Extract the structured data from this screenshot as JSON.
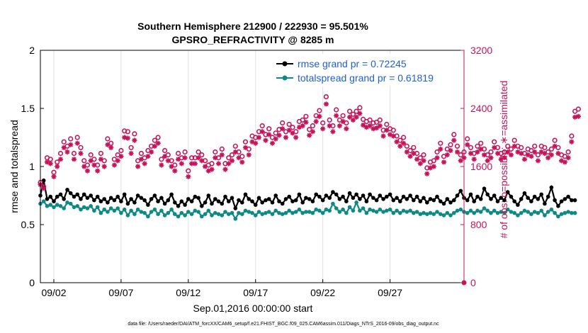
{
  "chart_data": {
    "type": "line",
    "title_line1": "Southern Hemisphere 212900 / 222930 = 95.501%",
    "title_line2": "GPSRO_REFRACTIVITY @ 8285 m",
    "xlabel": "Sep.01,2016 00:00:00 start",
    "ylabel": "rmse and totalspread",
    "ylabel_right": "# of obs: o=possible; ∗=assimilated",
    "xlim": [
      1,
      32.5
    ],
    "ylim": [
      0,
      2
    ],
    "ylim_right": [
      0,
      3200
    ],
    "x_ticks": [
      {
        "x": 2,
        "label": "09/02"
      },
      {
        "x": 7,
        "label": "09/07"
      },
      {
        "x": 12,
        "label": "09/12"
      },
      {
        "x": 17,
        "label": "09/17"
      },
      {
        "x": 22,
        "label": "09/22"
      },
      {
        "x": 27,
        "label": "09/27"
      }
    ],
    "y_ticks": [
      {
        "v": 0,
        "label": "0"
      },
      {
        "v": 0.5,
        "label": "0.5"
      },
      {
        "v": 1,
        "label": "1"
      },
      {
        "v": 1.5,
        "label": "1.5"
      },
      {
        "v": 2,
        "label": "2"
      }
    ],
    "y_ticks_right": [
      {
        "v": 0,
        "label": "0"
      },
      {
        "v": 800,
        "label": "800"
      },
      {
        "v": 1600,
        "label": "1600"
      },
      {
        "v": 2400,
        "label": "2400"
      },
      {
        "v": 3200,
        "label": "3200"
      }
    ],
    "grid": "vertical",
    "legend_position": "top-right",
    "series": [
      {
        "name": "rmse grand pr = 0.72245",
        "axis": "left",
        "color": "#000000",
        "marker": "dot",
        "start": 1,
        "step": 0.25,
        "values": [
          0.75,
          0.88,
          0.72,
          0.74,
          0.7,
          0.74,
          0.76,
          0.72,
          0.8,
          0.77,
          0.74,
          0.76,
          0.72,
          0.76,
          0.73,
          0.75,
          0.71,
          0.74,
          0.7,
          0.72,
          0.69,
          0.73,
          0.71,
          0.74,
          0.7,
          0.76,
          0.68,
          0.72,
          0.69,
          0.75,
          0.73,
          0.71,
          0.67,
          0.72,
          0.75,
          0.7,
          0.73,
          0.68,
          0.71,
          0.76,
          0.69,
          0.66,
          0.7,
          0.67,
          0.72,
          0.7,
          0.74,
          0.73,
          0.66,
          0.69,
          0.75,
          0.68,
          0.72,
          0.7,
          0.68,
          0.74,
          0.7,
          0.73,
          0.64,
          0.71,
          0.69,
          0.76,
          0.72,
          0.7,
          0.67,
          0.73,
          0.69,
          0.71,
          0.72,
          0.69,
          0.75,
          0.7,
          0.68,
          0.72,
          0.74,
          0.7,
          0.71,
          0.76,
          0.69,
          0.73,
          0.72,
          0.7,
          0.76,
          0.74,
          0.71,
          0.75,
          0.73,
          0.78,
          0.76,
          0.72,
          0.74,
          0.7,
          0.77,
          0.73,
          0.76,
          0.72,
          0.75,
          0.7,
          0.76,
          0.73,
          0.71,
          0.75,
          0.72,
          0.74,
          0.76,
          0.71,
          0.73,
          0.7,
          0.74,
          0.72,
          0.75,
          0.71,
          0.74,
          0.7,
          0.73,
          0.69,
          0.72,
          0.71,
          0.74,
          0.7,
          0.68,
          0.72,
          0.69,
          0.71,
          0.75,
          0.79,
          0.73,
          0.71,
          0.76,
          0.7,
          0.74,
          0.72,
          0.81,
          0.76,
          0.72,
          0.75,
          0.7,
          0.73,
          0.71,
          0.78,
          0.74,
          0.7,
          0.67,
          0.72,
          0.77,
          0.73,
          0.7,
          0.74,
          0.72,
          0.76,
          0.68,
          0.74,
          0.82,
          0.71,
          0.66,
          0.7,
          0.72,
          0.74,
          0.71,
          0.71
        ]
      },
      {
        "name": "totalspread grand pr = 0.61819",
        "axis": "left",
        "color": "#0e8a84",
        "marker": "dot",
        "start": 1,
        "step": 0.25,
        "values": [
          0.68,
          0.7,
          0.66,
          0.67,
          0.65,
          0.67,
          0.66,
          0.64,
          0.69,
          0.68,
          0.65,
          0.66,
          0.63,
          0.65,
          0.64,
          0.66,
          0.62,
          0.65,
          0.6,
          0.63,
          0.61,
          0.64,
          0.62,
          0.64,
          0.6,
          0.63,
          0.58,
          0.62,
          0.59,
          0.63,
          0.61,
          0.6,
          0.57,
          0.61,
          0.63,
          0.59,
          0.62,
          0.58,
          0.6,
          0.63,
          0.59,
          0.57,
          0.6,
          0.58,
          0.61,
          0.59,
          0.62,
          0.61,
          0.57,
          0.59,
          0.62,
          0.58,
          0.6,
          0.59,
          0.58,
          0.61,
          0.59,
          0.6,
          0.55,
          0.6,
          0.59,
          0.62,
          0.61,
          0.6,
          0.58,
          0.61,
          0.59,
          0.6,
          0.61,
          0.59,
          0.62,
          0.6,
          0.59,
          0.6,
          0.62,
          0.6,
          0.61,
          0.63,
          0.6,
          0.61,
          0.61,
          0.6,
          0.63,
          0.62,
          0.6,
          0.63,
          0.62,
          0.68,
          0.64,
          0.61,
          0.63,
          0.6,
          0.65,
          0.62,
          0.69,
          0.62,
          0.64,
          0.6,
          0.63,
          0.62,
          0.61,
          0.63,
          0.61,
          0.62,
          0.63,
          0.6,
          0.62,
          0.6,
          0.62,
          0.61,
          0.62,
          0.6,
          0.61,
          0.59,
          0.6,
          0.59,
          0.6,
          0.59,
          0.61,
          0.59,
          0.58,
          0.6,
          0.58,
          0.6,
          0.62,
          0.63,
          0.61,
          0.6,
          0.62,
          0.6,
          0.62,
          0.61,
          0.64,
          0.62,
          0.6,
          0.62,
          0.6,
          0.61,
          0.6,
          0.63,
          0.61,
          0.6,
          0.58,
          0.6,
          0.62,
          0.61,
          0.59,
          0.61,
          0.6,
          0.62,
          0.58,
          0.61,
          0.63,
          0.6,
          0.57,
          0.59,
          0.6,
          0.61,
          0.6,
          0.6
        ]
      },
      {
        "name": "possible",
        "axis": "right",
        "color": "#c4145a",
        "marker": "circle",
        "start": 1,
        "step": 0.25,
        "values": [
          1380,
          1320,
          1720,
          1700,
          1520,
          1660,
          1780,
          1940,
          1880,
          1980,
          1780,
          2000,
          1860,
          1680,
          1620,
          1760,
          1700,
          1620,
          1780,
          1680,
          1980,
          1920,
          1700,
          1760,
          1820,
          2090,
          2080,
          1860,
          2050,
          1680,
          1780,
          1720,
          1820,
          1880,
          1960,
          2000,
          1700,
          1820,
          1760,
          1680,
          1620,
          1780,
          1720,
          1800,
          1540,
          1720,
          1720,
          1800,
          1760,
          1680,
          1620,
          1640,
          1800,
          1720,
          1840,
          1640,
          1720,
          1760,
          1880,
          1800,
          1740,
          1940,
          1840,
          2020,
          2000,
          2080,
          2160,
          2040,
          2120,
          2000,
          2060,
          2110,
          2200,
          2080,
          2180,
          2140,
          2080,
          2220,
          2240,
          2290,
          2110,
          2160,
          2300,
          2370,
          2200,
          2560,
          2240,
          2160,
          2380,
          2240,
          2300,
          2200,
          2360,
          2320,
          2360,
          2410,
          2250,
          2220,
          2240,
          2200,
          2210,
          2240,
          2100,
          2180,
          2120,
          2100,
          2020,
          1960,
          2000,
          1880,
          1820,
          1860,
          1780,
          1720,
          1760,
          1580,
          1660,
          1680,
          1800,
          1920,
          1740,
          1840,
          1900,
          2040,
          1880,
          1760,
          1800,
          1980,
          1860,
          1780,
          1880,
          1920,
          1840,
          1760,
          1800,
          1940,
          1860,
          1780,
          1800,
          1880,
          1840,
          1960,
          1880,
          1860,
          1780,
          1840,
          1820,
          1880,
          1760,
          1880,
          1860,
          1800,
          1840,
          1960,
          1860,
          1760,
          1740,
          1800,
          2020,
          2360,
          2390
        ]
      },
      {
        "name": "assimilated",
        "axis": "right",
        "color": "#c4145a",
        "marker": "asterisk",
        "start": 1,
        "step": 0.25,
        "values": [
          1350,
          1300,
          1660,
          1640,
          1460,
          1600,
          1700,
          1860,
          1800,
          1900,
          1700,
          1920,
          1780,
          1600,
          1540,
          1680,
          1620,
          1540,
          1700,
          1600,
          1900,
          1860,
          1620,
          1680,
          1740,
          2000,
          1990,
          1780,
          1960,
          1600,
          1700,
          1640,
          1740,
          1800,
          1880,
          1920,
          1620,
          1740,
          1680,
          1600,
          1540,
          1700,
          1640,
          1720,
          1460,
          1640,
          1640,
          1720,
          1680,
          1600,
          1540,
          1560,
          1720,
          1640,
          1760,
          1560,
          1640,
          1680,
          1800,
          1720,
          1660,
          1860,
          1760,
          1940,
          1920,
          2000,
          2080,
          1960,
          2040,
          1920,
          1980,
          2030,
          2120,
          2000,
          2100,
          2060,
          2000,
          2140,
          2160,
          2210,
          2030,
          2080,
          2220,
          2290,
          2120,
          2460,
          2160,
          2080,
          2300,
          2160,
          2220,
          2120,
          2280,
          2240,
          2280,
          2330,
          2170,
          2140,
          2160,
          2120,
          2130,
          2160,
          2020,
          2100,
          2040,
          2020,
          1940,
          1880,
          1920,
          1800,
          1740,
          1780,
          1700,
          1640,
          1680,
          1500,
          1580,
          1600,
          1720,
          1840,
          1660,
          1760,
          1820,
          1960,
          1800,
          1680,
          1720,
          1900,
          1780,
          1700,
          1800,
          1840,
          1760,
          1680,
          1720,
          1860,
          1780,
          1700,
          1720,
          1800,
          1760,
          1880,
          1800,
          1780,
          1700,
          1760,
          1740,
          1800,
          1680,
          1800,
          1780,
          1720,
          1760,
          1880,
          1780,
          1680,
          1660,
          1720,
          1940,
          2280,
          2290
        ]
      }
    ],
    "footnote": "data file: /Users/raeder/DAI/ATM_forcXX/CAM6_setup/f.e21.FHIST_BGC.f09_025.CAM6assim.011/Diags_NTrS_2016-09/obs_diag_output.nc"
  }
}
